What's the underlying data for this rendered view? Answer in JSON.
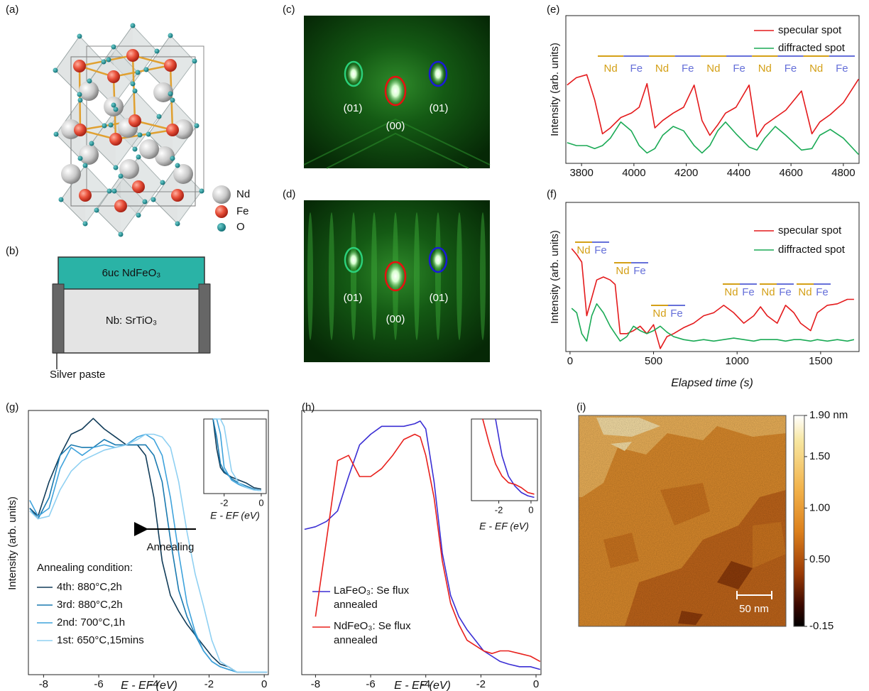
{
  "panel_labels": [
    "(a)",
    "(b)",
    "(c)",
    "(d)",
    "(e)",
    "(f)",
    "(g)",
    "(h)",
    "(i)"
  ],
  "structure": {
    "legend": [
      "Nd",
      "Fe",
      "O"
    ]
  },
  "substrate": {
    "film": "6uc NdFeO₃",
    "substrate": "Nb: SrTiO₃",
    "contact": "Silver paste"
  },
  "rheed": [
    {
      "spots": [
        "(01)",
        "(00)",
        "(01)"
      ]
    },
    {
      "spots": [
        "(01)",
        "(00)",
        "(01)"
      ]
    }
  ],
  "chart_data": [
    {
      "type": "line",
      "y_label": "Intensity (arb. units)",
      "x": [
        3745,
        3780,
        3820,
        3850,
        3880,
        3910,
        3950,
        3990,
        4020,
        4050,
        4080,
        4110,
        4150,
        4190,
        4230,
        4260,
        4290,
        4320,
        4350,
        4390,
        4440,
        4470,
        4500,
        4540,
        4580,
        4640,
        4680,
        4710,
        4750,
        4800,
        4858
      ],
      "xlim": [
        3740,
        4860
      ],
      "xticks": [
        3800,
        4000,
        4200,
        4400,
        4600,
        4800
      ],
      "ylim": [
        0,
        100
      ],
      "series": [
        {
          "name": "specular spot",
          "color": "#e41a1c",
          "values": [
            53,
            58,
            60,
            43,
            20,
            24,
            31,
            34,
            38,
            54,
            24,
            29,
            34,
            38,
            53,
            29,
            19,
            26,
            34,
            38,
            53,
            18,
            26,
            31,
            36,
            49,
            20,
            28,
            33,
            41,
            57
          ]
        },
        {
          "name": "diffracted spot",
          "color": "#1aaa55",
          "values": [
            14,
            12,
            12,
            10,
            12,
            17,
            28,
            22,
            12,
            7,
            10,
            19,
            25,
            22,
            12,
            7,
            12,
            22,
            28,
            20,
            11,
            9,
            17,
            25,
            19,
            9,
            10,
            19,
            23,
            17,
            6
          ]
        }
      ],
      "annotations": [
        {
          "text": "Nd",
          "color": "#d4a017"
        },
        {
          "text": "Fe",
          "color": "#6670d9"
        },
        {
          "text": "Nd",
          "color": "#d4a017"
        },
        {
          "text": "Fe",
          "color": "#6670d9"
        },
        {
          "text": "Nd",
          "color": "#d4a017"
        },
        {
          "text": "Fe",
          "color": "#6670d9"
        },
        {
          "text": "Nd",
          "color": "#d4a017"
        },
        {
          "text": "Fe",
          "color": "#6670d9"
        },
        {
          "text": "Nd",
          "color": "#d4a017"
        },
        {
          "text": "Fe",
          "color": "#6670d9"
        }
      ]
    },
    {
      "type": "line",
      "y_label": "Intensity (arb. units)",
      "x_label": "Elapsed time (s)",
      "x": [
        10,
        40,
        70,
        100,
        130,
        160,
        200,
        240,
        270,
        300,
        340,
        380,
        420,
        460,
        500,
        540,
        580,
        620,
        680,
        740,
        800,
        860,
        920,
        980,
        1040,
        1100,
        1140,
        1180,
        1240,
        1290,
        1340,
        1380,
        1440,
        1480,
        1540,
        1600,
        1660,
        1700
      ],
      "xlim": [
        -25,
        1730
      ],
      "xticks": [
        0,
        500,
        1000,
        1500
      ],
      "ylim": [
        0,
        100
      ],
      "series": [
        {
          "name": "specular spot",
          "color": "#e41a1c",
          "values": [
            69,
            65,
            60,
            24,
            36,
            48,
            50,
            48,
            45,
            12,
            12,
            14,
            17,
            12,
            18,
            2,
            10,
            12,
            16,
            19,
            24,
            26,
            31,
            26,
            19,
            24,
            30,
            24,
            19,
            31,
            26,
            19,
            14,
            26,
            31,
            32,
            35,
            35
          ]
        },
        {
          "name": "diffracted spot",
          "color": "#1aaa55",
          "values": [
            29,
            26,
            12,
            7,
            24,
            32,
            26,
            17,
            12,
            7,
            10,
            17,
            14,
            12,
            14,
            17,
            13,
            10,
            8,
            7,
            8,
            7,
            8,
            9,
            8,
            7,
            8,
            8,
            8,
            7,
            8,
            8,
            7,
            8,
            7,
            8,
            7,
            8
          ]
        }
      ],
      "annotations": [
        {
          "text": "Nd",
          "color": "#d4a017"
        },
        {
          "text": "Fe",
          "color": "#6670d9"
        },
        {
          "text": "Nd",
          "color": "#d4a017"
        },
        {
          "text": "Fe",
          "color": "#6670d9"
        },
        {
          "text": "Nd",
          "color": "#d4a017"
        },
        {
          "text": "Fe",
          "color": "#6670d9"
        },
        {
          "text": "Nd",
          "color": "#d4a017"
        },
        {
          "text": "Fe",
          "color": "#6670d9"
        },
        {
          "text": "Nd",
          "color": "#d4a017"
        },
        {
          "text": "Fe",
          "color": "#6670d9"
        },
        {
          "text": "Nd",
          "color": "#d4a017"
        },
        {
          "text": "Fe",
          "color": "#6670d9"
        }
      ]
    },
    {
      "type": "line",
      "y_label": "Intensity (arb. units)",
      "x_label": "E - EF (eV)",
      "legend_title": "Annealing condition:",
      "annotation": "Annealing",
      "x": [
        -8.5,
        -8.2,
        -7.8,
        -7.4,
        -7.0,
        -6.6,
        -6.2,
        -5.8,
        -5.4,
        -5.0,
        -4.6,
        -4.3,
        -4.0,
        -3.7,
        -3.4,
        -3.1,
        -2.8,
        -2.5,
        -2.2,
        -1.9,
        -1.6,
        -1.3,
        -1.0,
        -0.5,
        0.1
      ],
      "xlim": [
        -8.55,
        0.15
      ],
      "xticks": [
        -8,
        -6,
        -4,
        -2,
        0
      ],
      "ylim": [
        0,
        100
      ],
      "series": [
        {
          "name": "4th: 880°C,2h",
          "color": "#123d5a",
          "values": [
            63,
            60,
            73,
            83,
            91,
            93,
            97,
            93,
            90,
            87,
            87,
            83,
            67,
            43,
            30,
            24,
            19,
            15,
            11,
            7,
            4,
            3,
            1,
            1,
            1
          ]
        },
        {
          "name": "3rd: 880°C,2h",
          "color": "#1a7ab0",
          "values": [
            63,
            59,
            67,
            83,
            87,
            86,
            86,
            89,
            87,
            87,
            87,
            87,
            83,
            73,
            51,
            32,
            22,
            15,
            9,
            5,
            3,
            2,
            1,
            1,
            1
          ]
        },
        {
          "name": "2nd: 700°C,1h",
          "color": "#3fa3dc",
          "values": [
            66,
            60,
            63,
            78,
            86,
            83,
            86,
            87,
            86,
            87,
            90,
            91,
            89,
            83,
            67,
            46,
            27,
            16,
            9,
            5,
            3,
            2,
            1,
            1,
            1
          ]
        },
        {
          "name": "1st: 650°C,15mins",
          "color": "#8fd0f2",
          "values": [
            62,
            59,
            60,
            70,
            77,
            81,
            83,
            85,
            86,
            87,
            89,
            91,
            91,
            90,
            86,
            73,
            54,
            38,
            26,
            13,
            5,
            3,
            1,
            1,
            1
          ]
        }
      ]
    },
    {
      "type": "line",
      "x_label": "E - EF (eV)",
      "x": [
        -2.6,
        -2.4,
        -2.2,
        -2.0,
        -1.6,
        -1.2,
        -0.8,
        -0.4,
        0.0
      ],
      "xlim": [
        -3.1,
        0.27
      ],
      "xticks": [
        -2,
        0
      ],
      "ylim": [
        0,
        100
      ],
      "series": [
        {
          "color": "#123d5a",
          "values": [
            100,
            60,
            35,
            28,
            22,
            18,
            14,
            8,
            6
          ]
        },
        {
          "color": "#1a7ab0",
          "values": [
            100,
            75,
            40,
            30,
            20,
            14,
            10,
            6,
            4
          ]
        },
        {
          "color": "#3fa3dc",
          "values": [
            100,
            100,
            80,
            35,
            18,
            12,
            8,
            5,
            4
          ]
        },
        {
          "color": "#8fd0f2",
          "values": [
            100,
            100,
            100,
            90,
            30,
            14,
            8,
            5,
            4
          ]
        }
      ]
    },
    {
      "type": "line",
      "x_label": "E - EF (eV)",
      "x": [
        -8.4,
        -8.0,
        -7.6,
        -7.2,
        -6.8,
        -6.4,
        -6.0,
        -5.6,
        -5.2,
        -4.8,
        -4.4,
        -4.2,
        -4.0,
        -3.7,
        -3.4,
        -3.1,
        -2.8,
        -2.5,
        -2.2,
        -1.9,
        -1.6,
        -1.3,
        -1.0,
        -0.6,
        -0.2,
        0.15
      ],
      "xlim": [
        -8.5,
        0.18
      ],
      "xticks": [
        -8,
        -6,
        -4,
        -2,
        0
      ],
      "ylim": [
        0,
        100
      ],
      "series": [
        {
          "name": "LaFeO₃: Se flux annealed",
          "color": "#3b2fd4",
          "values": [
            55,
            56,
            58,
            62,
            75,
            87,
            91,
            94,
            94,
            94,
            95,
            96,
            93,
            73,
            46,
            30,
            22,
            17,
            13,
            9,
            7,
            5,
            4,
            3,
            3,
            2
          ]
        },
        {
          "name": "NdFeO₃: Se flux annealed",
          "color": "#e8201c",
          "values": [
            null,
            22,
            51,
            81,
            83,
            75,
            75,
            78,
            83,
            89,
            91,
            90,
            83,
            67,
            43,
            27,
            19,
            13,
            11,
            9,
            8,
            9,
            9,
            8,
            7,
            5
          ]
        }
      ]
    },
    {
      "type": "line",
      "x_label": "E - EF (eV)",
      "x": [
        -3.0,
        -2.6,
        -2.2,
        -1.8,
        -1.4,
        -1.0,
        -0.6,
        -0.2,
        0.2
      ],
      "xlim": [
        -3.7,
        0.4
      ],
      "xticks": [
        -2,
        0
      ],
      "ylim": [
        0,
        100
      ],
      "series": [
        {
          "color": "#3b2fd4",
          "values": [
            null,
            null,
            100,
            55,
            30,
            18,
            10,
            6,
            4
          ]
        },
        {
          "color": "#e8201c",
          "values": [
            100,
            70,
            45,
            30,
            22,
            20,
            16,
            10,
            8
          ]
        }
      ]
    },
    {
      "type": "colorbar",
      "scale_bar": "50 nm",
      "ylim": [
        -0.15,
        1.9
      ],
      "yticks": [
        {
          "value": 1.9,
          "label": "1.90 nm"
        },
        {
          "value": 1.5,
          "label": "1.50"
        },
        {
          "value": 1.0,
          "label": "1.00"
        },
        {
          "value": 0.5,
          "label": "0.50"
        },
        -0.15
      ]
    }
  ]
}
